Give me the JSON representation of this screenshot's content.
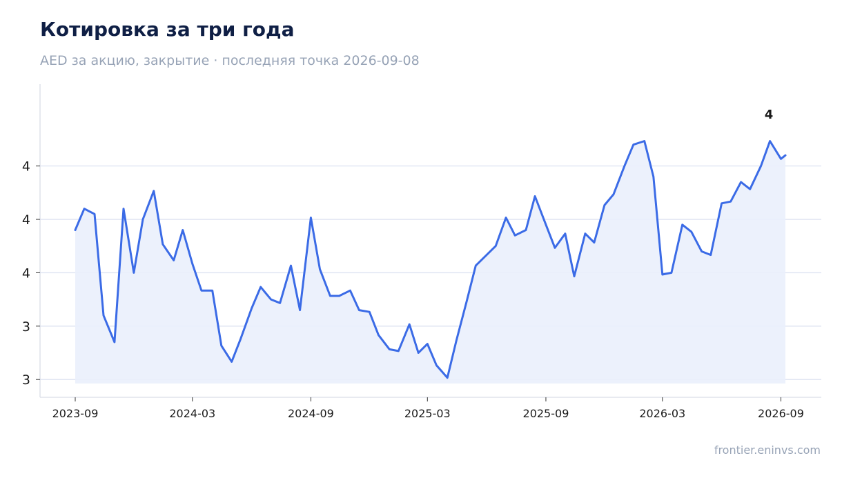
{
  "title": "Котировка за три года",
  "subtitle": "AED за акцию, закрытие · последняя точка 2026-09-08",
  "footer": "frontier.eninvs.com",
  "colors": {
    "line": "#3b6be6",
    "fill": "#eaf0fc",
    "grid": "#dde2f1",
    "axis": "#d9dde6",
    "title": "#0f1f45",
    "muted": "#97a3b6"
  },
  "chart_data": {
    "type": "line",
    "xlabel": "",
    "ylabel": "",
    "x_ticks": [
      "2023-09",
      "2024-03",
      "2024-09",
      "2025-03",
      "2025-09",
      "2026-03",
      "2026-09"
    ],
    "y_ticks": [
      "3",
      "3",
      "4",
      "4",
      "4"
    ],
    "ylim": [
      2.76,
      4.52
    ],
    "grid": true,
    "legend": "none",
    "end_label": "4",
    "series": [
      {
        "x": [
          "2023-09-01",
          "2023-09-15",
          "2023-10-01",
          "2023-10-15",
          "2023-11-01",
          "2023-11-15",
          "2023-12-01",
          "2023-12-15",
          "2024-01-01",
          "2024-01-15",
          "2024-02-01",
          "2024-02-15",
          "2024-03-01",
          "2024-03-15",
          "2024-04-01",
          "2024-04-15",
          "2024-05-01",
          "2024-05-15",
          "2024-06-01",
          "2024-06-15",
          "2024-07-01",
          "2024-07-15",
          "2024-08-01",
          "2024-08-15",
          "2024-09-01",
          "2024-09-15",
          "2024-10-01",
          "2024-10-15",
          "2024-11-01",
          "2024-11-15",
          "2024-12-01",
          "2024-12-15",
          "2025-01-01",
          "2025-01-15",
          "2025-02-01",
          "2025-02-15",
          "2025-03-01",
          "2025-03-15",
          "2025-04-01",
          "2025-04-15",
          "2025-05-01",
          "2025-05-15",
          "2025-06-01",
          "2025-06-15",
          "2025-07-01",
          "2025-07-15",
          "2025-08-01",
          "2025-08-15",
          "2025-09-01",
          "2025-09-15",
          "2025-10-01",
          "2025-10-15",
          "2025-11-01",
          "2025-11-15",
          "2025-12-01",
          "2025-12-15",
          "2026-01-01",
          "2026-01-15",
          "2026-02-01",
          "2026-02-15",
          "2026-03-01",
          "2026-03-15",
          "2026-04-01",
          "2026-04-15",
          "2026-05-01",
          "2026-05-15",
          "2026-06-01",
          "2026-06-15",
          "2026-07-01",
          "2026-07-15",
          "2026-08-01",
          "2026-08-15",
          "2026-09-01",
          "2026-09-08"
        ],
        "values": [
          3.7,
          3.82,
          3.79,
          3.22,
          3.07,
          3.82,
          3.46,
          3.76,
          3.92,
          3.62,
          3.53,
          3.7,
          3.51,
          3.36,
          3.36,
          3.05,
          2.96,
          3.09,
          3.26,
          3.38,
          3.31,
          3.29,
          3.5,
          3.25,
          3.77,
          3.48,
          3.33,
          3.33,
          3.36,
          3.25,
          3.24,
          3.11,
          3.03,
          3.02,
          3.17,
          3.01,
          3.06,
          2.94,
          2.87,
          3.08,
          3.3,
          3.5,
          3.56,
          3.61,
          3.77,
          3.67,
          3.7,
          3.89,
          3.73,
          3.6,
          3.68,
          3.44,
          3.68,
          3.63,
          3.84,
          3.9,
          4.06,
          4.18,
          4.2,
          4.0,
          3.45,
          3.46,
          3.73,
          3.69,
          3.58,
          3.56,
          3.85,
          3.86,
          3.97,
          3.93,
          4.06,
          4.2,
          4.1,
          4.12
        ]
      }
    ]
  }
}
